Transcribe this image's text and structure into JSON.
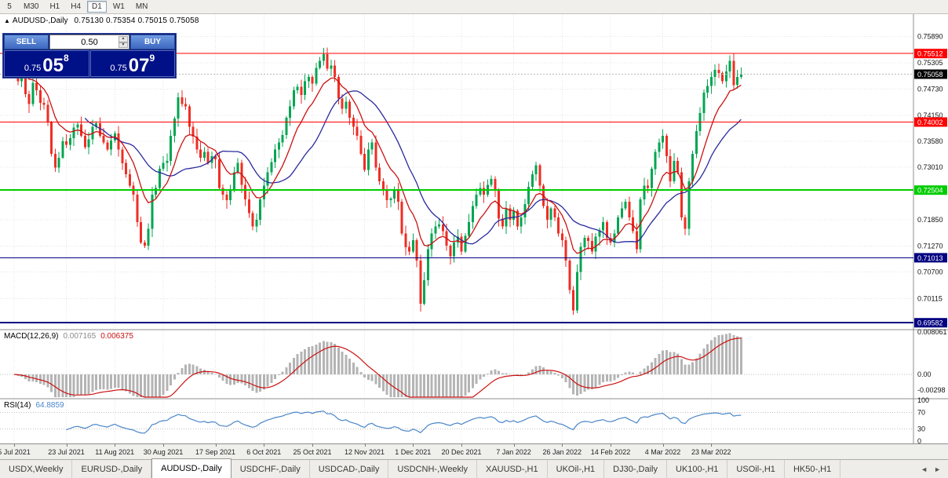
{
  "toolbar": {
    "timeframes": [
      "5",
      "M30",
      "H1",
      "H4",
      "D1",
      "W1",
      "MN"
    ],
    "active_timeframe": "D1"
  },
  "header": {
    "collapse_icon": "▲",
    "symbol_label": "AUDUSD-,Daily",
    "open": "0.75130",
    "high": "0.75354",
    "low": "0.75015",
    "close": "0.75058"
  },
  "trade_panel": {
    "sell_label": "SELL",
    "buy_label": "BUY",
    "volume": "0.50",
    "spin_up": "▲",
    "spin_down": "▼",
    "bid": {
      "prefix": "0.75",
      "big": "05",
      "sup": "8"
    },
    "ask": {
      "prefix": "0.75",
      "big": "07",
      "sup": "9"
    }
  },
  "price_axis": {
    "ticks": [
      "0.75890",
      "0.75305",
      "0.74730",
      "0.74150",
      "0.73580",
      "0.73010",
      "0.71850",
      "0.71270",
      "0.70700",
      "0.70115"
    ],
    "current_price": {
      "text": "0.75058",
      "bg": "#000000",
      "fg": "#ffffff"
    }
  },
  "macd_panel": {
    "label": "MACD(12,26,9)",
    "main_value": "0.007165",
    "signal_value": "0.006375",
    "axis_labels": [
      {
        "text": "0.008061",
        "value": 0.008061
      },
      {
        "text": "0.00",
        "value": 0
      },
      {
        "text": "-0.00298",
        "value": -0.00298
      }
    ]
  },
  "rsi_panel": {
    "label": "RSI(14)",
    "value": "64.8859",
    "axis_labels": [
      {
        "text": "100",
        "value": 100
      },
      {
        "text": "70",
        "value": 70
      },
      {
        "text": "30",
        "value": 30
      },
      {
        "text": "0",
        "value": 0
      }
    ],
    "levels": [
      70,
      30
    ]
  },
  "tabs": {
    "items": [
      "USDX,Weekly",
      "EURUSD-,Daily",
      "AUDUSD-,Daily",
      "USDCHF-,Daily",
      "USDCAD-,Daily",
      "USDCNH-,Weekly",
      "XAUUSD-,H1",
      "UKOil-,H1",
      "DJ30-,Daily",
      "UK100-,H1",
      "USOil-,H1",
      "HK50-,H1"
    ],
    "active_index": 2,
    "scroll_left": "◄",
    "scroll_right": "►"
  },
  "chart_data": {
    "type": "candlestick",
    "symbol": "AUDUSD",
    "timeframe": "Daily",
    "title": "AUDUSD-,Daily",
    "x_labels": [
      "5 Jul 2021",
      "23 Jul 2021",
      "11 Aug 2021",
      "30 Aug 2021",
      "17 Sep 2021",
      "6 Oct 2021",
      "25 Oct 2021",
      "12 Nov 2021",
      "1 Dec 2021",
      "20 Dec 2021",
      "7 Jan 2022",
      "26 Jan 2022",
      "14 Feb 2022",
      "4 Mar 2022",
      "23 Mar 2022"
    ],
    "x_label_indices": [
      0,
      14,
      27,
      40,
      54,
      67,
      80,
      94,
      107,
      120,
      134,
      147,
      160,
      174,
      187
    ],
    "price_range": {
      "top": 0.7638,
      "bottom": 0.6943
    },
    "current_close": 0.75058,
    "closes": [
      0.7528,
      0.749,
      0.7498,
      0.7462,
      0.744,
      0.7487,
      0.747,
      0.7443,
      0.7438,
      0.74,
      0.733,
      0.73,
      0.7322,
      0.7358,
      0.735,
      0.7365,
      0.7388,
      0.7395,
      0.737,
      0.7345,
      0.7362,
      0.739,
      0.7398,
      0.737,
      0.7355,
      0.734,
      0.736,
      0.7375,
      0.734,
      0.731,
      0.7285,
      0.726,
      0.724,
      0.718,
      0.7135,
      0.7128,
      0.7165,
      0.724,
      0.7255,
      0.7297,
      0.731,
      0.7315,
      0.737,
      0.7408,
      0.7455,
      0.744,
      0.7435,
      0.739,
      0.7368,
      0.734,
      0.7322,
      0.7335,
      0.731,
      0.7325,
      0.7318,
      0.7255,
      0.724,
      0.7228,
      0.725,
      0.729,
      0.731,
      0.7262,
      0.723,
      0.72,
      0.717,
      0.7185,
      0.723,
      0.726,
      0.729,
      0.7312,
      0.734,
      0.7355,
      0.7372,
      0.741,
      0.7435,
      0.747,
      0.7478,
      0.746,
      0.749,
      0.75,
      0.7485,
      0.752,
      0.7535,
      0.755,
      0.7518,
      0.7525,
      0.75,
      0.7452,
      0.743,
      0.7445,
      0.741,
      0.739,
      0.737,
      0.733,
      0.7295,
      0.734,
      0.7355,
      0.73,
      0.727,
      0.725,
      0.7228,
      0.7232,
      0.725,
      0.7225,
      0.7155,
      0.7125,
      0.7115,
      0.714,
      0.7095,
      0.7,
      0.7052,
      0.712,
      0.7155,
      0.717,
      0.7175,
      0.716,
      0.7128,
      0.7105,
      0.7135,
      0.7148,
      0.7115,
      0.715,
      0.718,
      0.7215,
      0.724,
      0.7255,
      0.724,
      0.7262,
      0.7275,
      0.725,
      0.7188,
      0.717,
      0.721,
      0.7185,
      0.7205,
      0.717,
      0.719,
      0.722,
      0.7258,
      0.7285,
      0.7305,
      0.726,
      0.7215,
      0.7185,
      0.721,
      0.719,
      0.7155,
      0.714,
      0.7095,
      0.703,
      0.6985,
      0.707,
      0.7125,
      0.7145,
      0.7138,
      0.7115,
      0.7148,
      0.7162,
      0.718,
      0.7145,
      0.7135,
      0.7155,
      0.719,
      0.721,
      0.7225,
      0.719,
      0.716,
      0.712,
      0.723,
      0.726,
      0.7255,
      0.7297,
      0.7335,
      0.7355,
      0.737,
      0.7325,
      0.727,
      0.7315,
      0.729,
      0.719,
      0.7165,
      0.727,
      0.733,
      0.738,
      0.742,
      0.7465,
      0.748,
      0.75,
      0.7515,
      0.7508,
      0.749,
      0.7512,
      0.7535,
      0.7482,
      0.75,
      0.75058
    ],
    "hlines": [
      {
        "price": 0.75512,
        "color": "#ff0000",
        "width": 1,
        "label": "0.75512"
      },
      {
        "price": 0.74002,
        "color": "#ff0000",
        "width": 1,
        "label": "0.74002"
      },
      {
        "price": 0.72504,
        "color": "#00cc00",
        "width": 2,
        "label": "0.72504"
      },
      {
        "price": 0.71013,
        "color": "#000080",
        "width": 1,
        "label": "0.71013"
      },
      {
        "price": 0.69582,
        "color": "#000080",
        "width": 2,
        "label": "0.69582"
      }
    ],
    "colors": {
      "bull": "#00a551",
      "bear": "#ee2e24",
      "ma_fast": "#cc1111",
      "ma_slow": "#2a2a9e",
      "macd_hist": "#b4b4b4",
      "macd_signal": "#cc1111",
      "rsi": "#4a86c8",
      "grid": "#e4e4e4",
      "level_dotted": "#c0c0c0"
    },
    "indicators": {
      "ma_fast_period": 10,
      "ma_slow_period": 20,
      "macd": [
        12,
        26,
        9
      ],
      "rsi_period": 14
    }
  }
}
